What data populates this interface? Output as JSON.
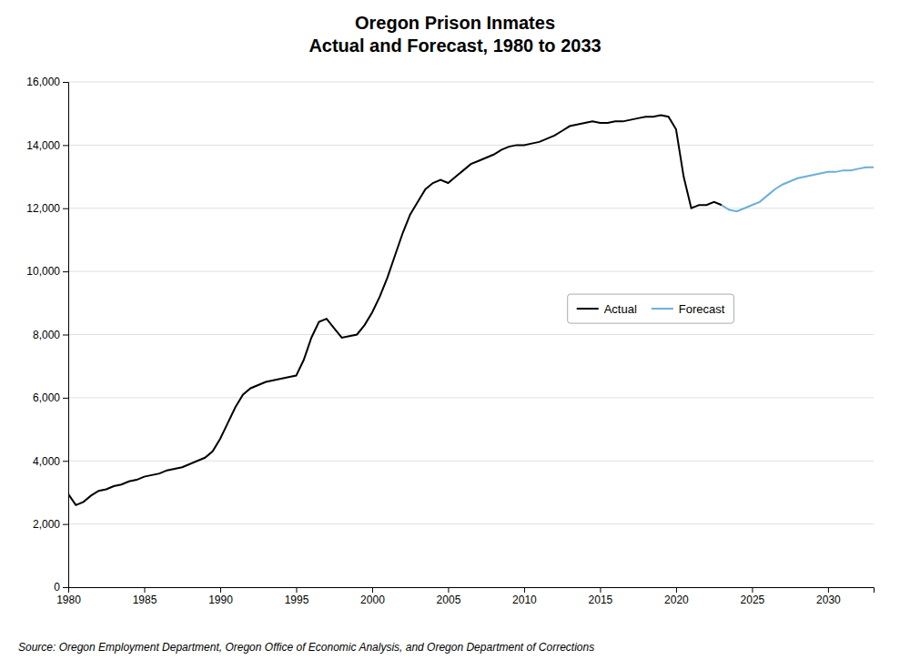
{
  "chart_data": {
    "type": "line",
    "title": "Oregon Prison Inmates\nActual and Forecast, 1980 to 2033",
    "source": "Source: Oregon Employment Department, Oregon Office of Economic Analysis, and Oregon Department of Corrections",
    "series": [
      {
        "name": "Actual",
        "color": "#000000",
        "x": [
          1980.0,
          1980.5,
          1981.0,
          1981.5,
          1982.0,
          1982.5,
          1983.0,
          1983.5,
          1984.0,
          1984.5,
          1985.0,
          1985.5,
          1986.0,
          1986.5,
          1987.0,
          1987.5,
          1988.0,
          1988.5,
          1989.0,
          1989.5,
          1990.0,
          1990.5,
          1991.0,
          1991.5,
          1992.0,
          1992.5,
          1993.0,
          1993.5,
          1994.0,
          1994.5,
          1995.0,
          1995.5,
          1996.0,
          1996.5,
          1997.0,
          1997.5,
          1998.0,
          1998.5,
          1999.0,
          1999.5,
          2000.0,
          2000.5,
          2001.0,
          2001.5,
          2002.0,
          2002.5,
          2003.0,
          2003.5,
          2004.0,
          2004.5,
          2005.0,
          2005.5,
          2006.0,
          2006.5,
          2007.0,
          2007.5,
          2008.0,
          2008.5,
          2009.0,
          2009.5,
          2010.0,
          2010.5,
          2011.0,
          2011.5,
          2012.0,
          2012.5,
          2013.0,
          2013.5,
          2014.0,
          2014.5,
          2015.0,
          2015.5,
          2016.0,
          2016.5,
          2017.0,
          2017.5,
          2018.0,
          2018.5,
          2019.0,
          2019.5,
          2020.0,
          2020.5,
          2021.0,
          2021.5,
          2022.0,
          2022.5,
          2023.0
        ],
        "values": [
          2950,
          2600,
          2700,
          2900,
          3050,
          3100,
          3200,
          3250,
          3350,
          3400,
          3500,
          3550,
          3600,
          3700,
          3750,
          3800,
          3900,
          4000,
          4100,
          4300,
          4700,
          5200,
          5700,
          6100,
          6300,
          6400,
          6500,
          6550,
          6600,
          6650,
          6700,
          7200,
          7900,
          8400,
          8500,
          8200,
          7900,
          7950,
          8000,
          8300,
          8700,
          9200,
          9800,
          10500,
          11200,
          11800,
          12200,
          12600,
          12800,
          12900,
          12800,
          13000,
          13200,
          13400,
          13500,
          13600,
          13700,
          13850,
          13950,
          14000,
          14000,
          14050,
          14100,
          14200,
          14300,
          14450,
          14600,
          14650,
          14700,
          14750,
          14700,
          14700,
          14750,
          14750,
          14800,
          14850,
          14900,
          14900,
          14950,
          14900,
          14500,
          13000,
          12000,
          12100,
          12100,
          12200,
          12100
        ]
      },
      {
        "name": "Forecast",
        "color": "#6ab0d8",
        "x": [
          2023.0,
          2023.5,
          2024.0,
          2024.5,
          2025.0,
          2025.5,
          2026.0,
          2026.5,
          2027.0,
          2027.5,
          2028.0,
          2028.5,
          2029.0,
          2029.5,
          2030.0,
          2030.5,
          2031.0,
          2031.5,
          2032.0,
          2032.5,
          2033.0
        ],
        "values": [
          12100,
          11950,
          11900,
          12000,
          12100,
          12200,
          12400,
          12600,
          12750,
          12850,
          12950,
          13000,
          13050,
          13100,
          13150,
          13150,
          13200,
          13200,
          13250,
          13300,
          13300
        ]
      }
    ],
    "xlim": [
      1980,
      2033
    ],
    "xticks": [
      1980,
      1985,
      1990,
      1995,
      2000,
      2005,
      2010,
      2015,
      2020,
      2025,
      2030
    ],
    "ylim": [
      0,
      16000
    ],
    "yticks": [
      0,
      {
        "value": 2000,
        "label": "2,000"
      },
      {
        "value": 4000,
        "label": "4,000"
      },
      {
        "value": 6000,
        "label": "6,000"
      },
      {
        "value": 8000,
        "label": "8,000"
      },
      {
        "value": 10000,
        "label": "10,000"
      },
      {
        "value": 12000,
        "label": "12,000"
      },
      {
        "value": 14000,
        "label": "14,000"
      },
      {
        "value": 16000,
        "label": "16,000"
      }
    ],
    "grid": true,
    "legend": "right"
  }
}
